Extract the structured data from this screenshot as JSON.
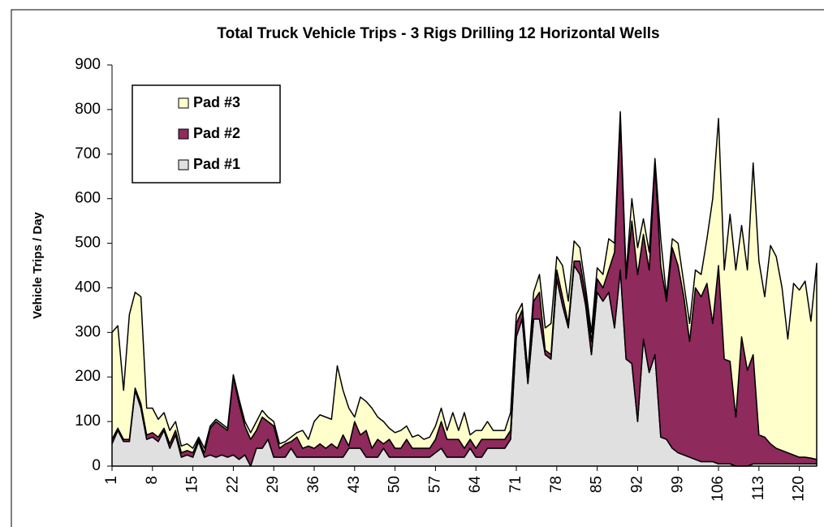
{
  "chart_data": {
    "type": "stacked_area",
    "title": "Total Truck Vehicle Trips - 3 Rigs Drilling 12 Horizontal Wells",
    "y_label": "Vehicle Trips / Day",
    "x": [
      1,
      2,
      3,
      4,
      5,
      6,
      7,
      8,
      9,
      10,
      11,
      12,
      13,
      14,
      15,
      16,
      17,
      18,
      19,
      20,
      21,
      22,
      23,
      24,
      25,
      26,
      27,
      28,
      29,
      30,
      31,
      32,
      33,
      34,
      35,
      36,
      37,
      38,
      39,
      40,
      41,
      42,
      43,
      44,
      45,
      46,
      47,
      48,
      49,
      50,
      51,
      52,
      53,
      54,
      55,
      56,
      57,
      58,
      59,
      60,
      61,
      62,
      63,
      64,
      65,
      66,
      67,
      68,
      69,
      70,
      71,
      72,
      73,
      74,
      75,
      76,
      77,
      78,
      79,
      80,
      81,
      82,
      83,
      84,
      85,
      86,
      87,
      88,
      89,
      90,
      91,
      92,
      93,
      94,
      95,
      96,
      97,
      98,
      99,
      100,
      101,
      102,
      103,
      104,
      105,
      106,
      107,
      108,
      109,
      110,
      111,
      112,
      113,
      114,
      115,
      116,
      117,
      118,
      119,
      120,
      121,
      122,
      123
    ],
    "xlim": [
      1,
      123
    ],
    "xticks": [
      1,
      8,
      15,
      22,
      29,
      36,
      43,
      50,
      57,
      64,
      71,
      78,
      85,
      92,
      99,
      106,
      113,
      120
    ],
    "ylim": [
      0,
      900
    ],
    "yticks": [
      0,
      100,
      200,
      300,
      400,
      500,
      600,
      700,
      800,
      900
    ],
    "legend": "upper-left",
    "series": [
      {
        "name": "Pad #1",
        "color": "#e0e0e0",
        "values": [
          50,
          80,
          55,
          55,
          170,
          130,
          60,
          65,
          55,
          80,
          40,
          70,
          20,
          25,
          20,
          55,
          20,
          25,
          20,
          25,
          20,
          25,
          15,
          25,
          0,
          40,
          40,
          60,
          20,
          20,
          20,
          40,
          20,
          20,
          20,
          20,
          20,
          20,
          20,
          20,
          20,
          40,
          40,
          40,
          20,
          20,
          20,
          40,
          20,
          20,
          20,
          20,
          20,
          20,
          20,
          20,
          30,
          40,
          20,
          20,
          20,
          20,
          40,
          20,
          20,
          40,
          40,
          40,
          40,
          60,
          290,
          330,
          185,
          330,
          330,
          250,
          240,
          420,
          360,
          310,
          450,
          430,
          360,
          250,
          390,
          370,
          390,
          310,
          440,
          240,
          230,
          100,
          285,
          210,
          250,
          65,
          60,
          40,
          30,
          25,
          20,
          15,
          10,
          10,
          10,
          5,
          5,
          5,
          0,
          0,
          0,
          5,
          5,
          5,
          5,
          5,
          5,
          5,
          5,
          5,
          5,
          5,
          5
        ]
      },
      {
        "name": "Pad #2",
        "color": "#8e2a5c",
        "values": [
          10,
          5,
          5,
          5,
          5,
          10,
          10,
          10,
          10,
          5,
          10,
          10,
          10,
          10,
          10,
          5,
          10,
          60,
          80,
          65,
          60,
          175,
          125,
          65,
          60,
          40,
          70,
          40,
          70,
          20,
          30,
          15,
          45,
          20,
          25,
          20,
          30,
          20,
          30,
          20,
          50,
          5,
          60,
          30,
          60,
          20,
          40,
          10,
          40,
          20,
          20,
          40,
          20,
          20,
          20,
          20,
          30,
          60,
          40,
          40,
          40,
          20,
          20,
          20,
          40,
          20,
          20,
          20,
          20,
          20,
          30,
          20,
          15,
          40,
          60,
          10,
          10,
          20,
          20,
          10,
          10,
          30,
          20,
          30,
          30,
          30,
          50,
          170,
          340,
          180,
          320,
          330,
          235,
          230,
          430,
          385,
          310,
          450,
          420,
          355,
          260,
          385,
          370,
          400,
          310,
          445,
          235,
          230,
          110,
          290,
          215,
          245,
          65,
          60,
          45,
          35,
          30,
          25,
          20,
          15,
          15,
          13,
          10
        ]
      },
      {
        "name": "Pad #3",
        "color": "#ffffcc",
        "values": [
          240,
          230,
          110,
          280,
          215,
          240,
          60,
          55,
          40,
          35,
          30,
          20,
          15,
          15,
          10,
          5,
          10,
          5,
          5,
          5,
          5,
          5,
          10,
          10,
          15,
          20,
          15,
          10,
          10,
          10,
          5,
          10,
          10,
          40,
          15,
          60,
          65,
          70,
          55,
          185,
          100,
          85,
          10,
          85,
          65,
          90,
          50,
          50,
          25,
          35,
          40,
          30,
          25,
          30,
          20,
          25,
          30,
          30,
          20,
          60,
          20,
          80,
          10,
          40,
          20,
          40,
          20,
          20,
          20,
          40,
          20,
          15,
          10,
          20,
          40,
          50,
          70,
          30,
          70,
          50,
          45,
          30,
          20,
          20,
          25,
          30,
          70,
          20,
          15,
          10,
          50,
          60,
          35,
          40,
          10,
          60,
          10,
          20,
          50,
          30,
          40,
          40,
          50,
          100,
          280,
          330,
          200,
          330,
          330,
          250,
          225,
          430,
          390,
          315,
          445,
          430,
          365,
          255,
          385,
          375,
          395,
          307,
          440
        ]
      }
    ]
  }
}
